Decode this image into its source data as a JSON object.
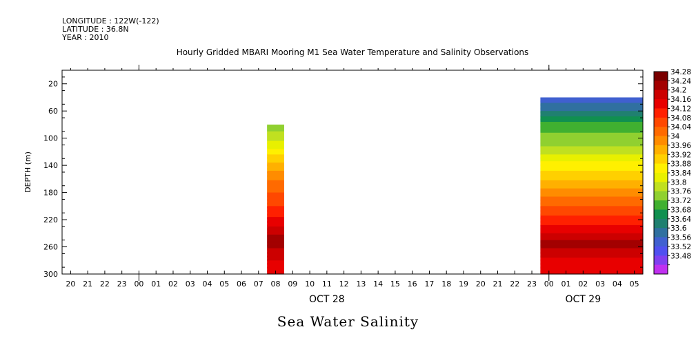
{
  "header": {
    "longitude": "LONGITUDE : 122W(-122)",
    "latitude": "LATITUDE : 36.8N",
    "year": "YEAR : 2010"
  },
  "chart_data": {
    "type": "heatmap",
    "title": "Hourly Gridded MBARI Mooring M1 Sea Water Temperature and Salinity Observations",
    "bottom_title": "Sea Water Salinity",
    "ylabel": "DEPTH (m)",
    "xlabel": "",
    "y_inverted": true,
    "ylim": [
      0,
      300
    ],
    "yticks": [
      20,
      60,
      100,
      140,
      180,
      220,
      260,
      300
    ],
    "x_hour_labels": [
      "20",
      "21",
      "22",
      "23",
      "00",
      "01",
      "02",
      "03",
      "04",
      "05",
      "06",
      "07",
      "08",
      "09",
      "10",
      "11",
      "12",
      "13",
      "14",
      "15",
      "16",
      "17",
      "18",
      "19",
      "20",
      "21",
      "22",
      "23",
      "00",
      "01",
      "02",
      "03",
      "04",
      "05"
    ],
    "x_date_labels": [
      {
        "label": "OCT 28",
        "at_index": 15
      },
      {
        "label": "OCT 29",
        "at_index": 30
      }
    ],
    "colorbar": {
      "levels": [
        "34.28",
        "34.24",
        "34.2",
        "34.16",
        "34.12",
        "34.08",
        "34.04",
        "34",
        "33.96",
        "33.92",
        "33.88",
        "33.84",
        "33.8",
        "33.76",
        "33.72",
        "33.68",
        "33.64",
        "33.6",
        "33.56",
        "33.52",
        "33.48"
      ],
      "colors": [
        "#7a0000",
        "#a30000",
        "#cc0000",
        "#e80000",
        "#ff2000",
        "#ff4800",
        "#ff6a00",
        "#ff8c00",
        "#ffb000",
        "#ffd000",
        "#fff000",
        "#e8f000",
        "#c0e020",
        "#90d030",
        "#40b030",
        "#109050",
        "#208070",
        "#3070a0",
        "#4060d0",
        "#5050f0",
        "#8040f0",
        "#c030f0"
      ]
    },
    "series": [
      {
        "x_index": 12,
        "depth_range": [
          80,
          300
        ],
        "profile": [
          {
            "depth": 80,
            "value": 33.77
          },
          {
            "depth": 110,
            "value": 33.86
          },
          {
            "depth": 140,
            "value": 33.98
          },
          {
            "depth": 170,
            "value": 34.06
          },
          {
            "depth": 200,
            "value": 34.12
          },
          {
            "depth": 225,
            "value": 34.18
          },
          {
            "depth": 250,
            "value": 34.27
          },
          {
            "depth": 270,
            "value": 34.22
          },
          {
            "depth": 300,
            "value": 34.16
          }
        ]
      },
      {
        "x_index_range": [
          28,
          33
        ],
        "depth_range": [
          40,
          300
        ],
        "profile": [
          {
            "depth": 40,
            "value": 33.57
          },
          {
            "depth": 60,
            "value": 33.64
          },
          {
            "depth": 80,
            "value": 33.74
          },
          {
            "depth": 110,
            "value": 33.79
          },
          {
            "depth": 135,
            "value": 33.88
          },
          {
            "depth": 165,
            "value": 33.97
          },
          {
            "depth": 190,
            "value": 34.05
          },
          {
            "depth": 215,
            "value": 34.12
          },
          {
            "depth": 235,
            "value": 34.18
          },
          {
            "depth": 255,
            "value": 34.26
          },
          {
            "depth": 275,
            "value": 34.2
          },
          {
            "depth": 300,
            "value": 34.16
          }
        ]
      }
    ]
  }
}
